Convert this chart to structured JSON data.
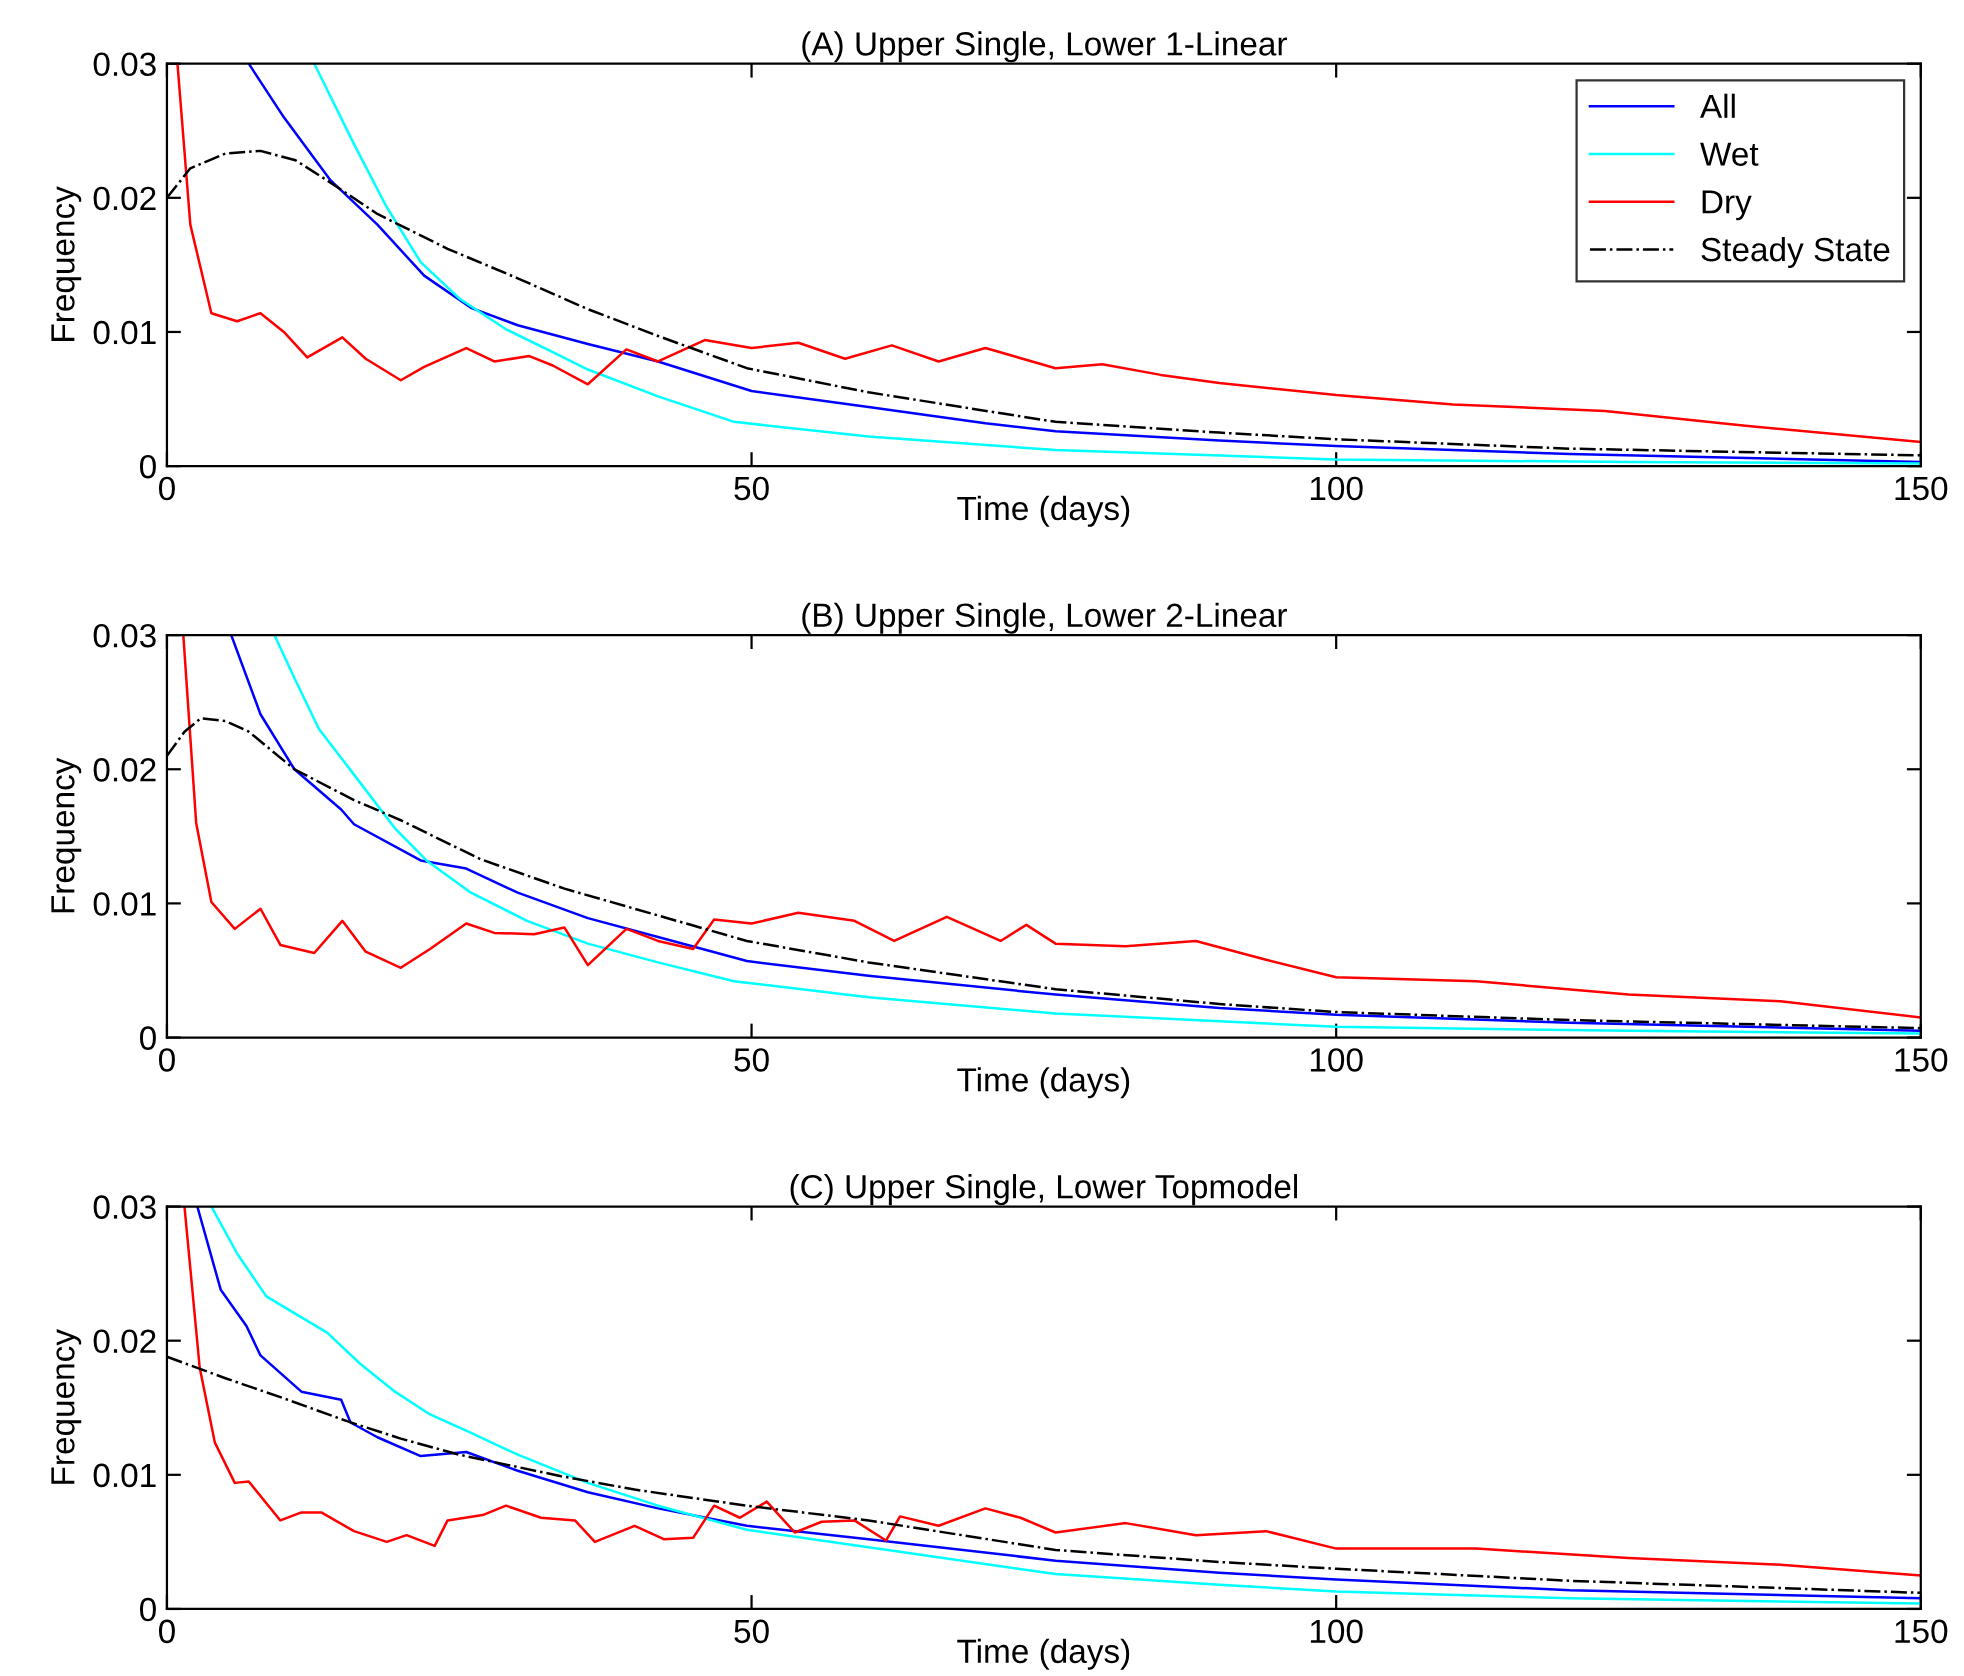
{
  "chart_data": [
    {
      "type": "line",
      "title": "(A) Upper Single, Lower 1-Linear",
      "xlabel": "Time (days)",
      "ylabel": "Frequency",
      "xlim": [
        0,
        150
      ],
      "ylim": [
        0,
        0.03
      ],
      "xticks": [
        0,
        50,
        100,
        150
      ],
      "yticks": [
        0,
        0.01,
        0.02,
        0.03
      ],
      "grid": false,
      "legend": "top right",
      "marker": "none",
      "series": [
        {
          "name": "All",
          "color": "#0000ff",
          "x": [
            7,
            10,
            14,
            18,
            22,
            26,
            30,
            36,
            42,
            50,
            60,
            70,
            76,
            90,
            100,
            120,
            150
          ],
          "values": [
            0.03,
            0.026,
            0.0213,
            0.018,
            0.0142,
            0.0118,
            0.0105,
            0.0091,
            0.0078,
            0.0056,
            0.0044,
            0.0032,
            0.0026,
            0.0019,
            0.0015,
            0.0009,
            0.0003
          ]
        },
        {
          "name": "Wet",
          "color": "#00ffff",
          "x": [
            12.6,
            16,
            18.8,
            21.7,
            25,
            29,
            33,
            36,
            42,
            48.5,
            60,
            76,
            100,
            125,
            150
          ],
          "values": [
            0.03,
            0.024,
            0.0193,
            0.0152,
            0.0125,
            0.0102,
            0.0085,
            0.0072,
            0.0052,
            0.0033,
            0.0022,
            0.0012,
            0.0005,
            0.0003,
            0.0002
          ]
        },
        {
          "name": "Dry",
          "color": "#ff0000",
          "x": [
            0.9,
            2,
            3.8,
            6,
            8,
            10,
            12,
            15,
            17,
            20,
            22,
            25.6,
            28,
            31,
            33,
            36,
            39.3,
            42,
            46,
            50,
            54,
            58,
            62,
            66,
            70,
            76,
            80,
            85,
            90,
            100,
            110,
            123,
            135,
            150
          ],
          "values": [
            0.03,
            0.018,
            0.0114,
            0.0108,
            0.0114,
            0.01,
            0.0081,
            0.0096,
            0.008,
            0.0064,
            0.0074,
            0.0088,
            0.0078,
            0.0082,
            0.0075,
            0.0061,
            0.0087,
            0.0078,
            0.0094,
            0.0088,
            0.0092,
            0.008,
            0.009,
            0.0078,
            0.0088,
            0.0073,
            0.0076,
            0.0068,
            0.0062,
            0.0053,
            0.0046,
            0.0041,
            0.003,
            0.0018
          ]
        },
        {
          "name": "Steady State",
          "color": "#000000",
          "line_style": "dashdot",
          "x": [
            0,
            2,
            5,
            8,
            11,
            13.7,
            18,
            24,
            30,
            36,
            42,
            49.6,
            60,
            76,
            90,
            100,
            120,
            150
          ],
          "values": [
            0.02,
            0.0222,
            0.0233,
            0.0235,
            0.0228,
            0.0213,
            0.0188,
            0.0162,
            0.014,
            0.0117,
            0.0097,
            0.0073,
            0.0055,
            0.0033,
            0.0025,
            0.002,
            0.0013,
            0.0008
          ]
        }
      ]
    },
    {
      "type": "line",
      "title": "(B) Upper Single, Lower 2-Linear",
      "xlabel": "Time (days)",
      "ylabel": "Frequency",
      "xlim": [
        0,
        150
      ],
      "ylim": [
        0,
        0.03
      ],
      "xticks": [
        0,
        50,
        100,
        150
      ],
      "yticks": [
        0,
        0.01,
        0.02,
        0.03
      ],
      "grid": false,
      "legend": false,
      "marker": "none",
      "series": [
        {
          "color": "#0000ff",
          "x": [
            5.5,
            8,
            10.9,
            14.9,
            16,
            21.7,
            25.6,
            30,
            36,
            42,
            49.6,
            60,
            76,
            90,
            100,
            120,
            150
          ],
          "values": [
            0.03,
            0.0241,
            0.02,
            0.017,
            0.0159,
            0.0132,
            0.0126,
            0.0108,
            0.0089,
            0.0075,
            0.0057,
            0.0046,
            0.0032,
            0.0022,
            0.0017,
            0.0011,
            0.0005
          ]
        },
        {
          "color": "#00ffff",
          "x": [
            9.2,
            10.9,
            13,
            16,
            19.5,
            22.2,
            26,
            30.8,
            36,
            42,
            48.5,
            60,
            76,
            100,
            125,
            150
          ],
          "values": [
            0.03,
            0.0268,
            0.023,
            0.0196,
            0.0156,
            0.0132,
            0.0108,
            0.0087,
            0.007,
            0.0056,
            0.0042,
            0.003,
            0.0018,
            0.0008,
            0.0005,
            0.0003
          ]
        },
        {
          "color": "#ff0000",
          "x": [
            1.4,
            2.5,
            3.8,
            5.8,
            8,
            9.7,
            12.6,
            15,
            17,
            20,
            22.5,
            25.6,
            28,
            31.4,
            34,
            36,
            39.3,
            42,
            45,
            46.8,
            50,
            54,
            58.8,
            62.2,
            66.7,
            71.3,
            73.5,
            76,
            82,
            88,
            94,
            100,
            112,
            125,
            138,
            150
          ],
          "values": [
            0.03,
            0.016,
            0.0101,
            0.0081,
            0.0096,
            0.0069,
            0.0063,
            0.0087,
            0.0064,
            0.0052,
            0.0066,
            0.0085,
            0.0078,
            0.0077,
            0.0082,
            0.0054,
            0.0081,
            0.0072,
            0.0066,
            0.0088,
            0.0085,
            0.0093,
            0.0087,
            0.0072,
            0.009,
            0.0072,
            0.0084,
            0.007,
            0.0068,
            0.0072,
            0.0058,
            0.0045,
            0.0042,
            0.0032,
            0.0027,
            0.0015
          ]
        },
        {
          "color": "#000000",
          "line_style": "dashdot",
          "x": [
            0,
            1.5,
            2.9,
            5,
            7,
            10.9,
            16,
            20,
            26.8,
            34,
            40,
            49.6,
            60,
            76,
            90,
            100,
            120,
            150
          ],
          "values": [
            0.021,
            0.0228,
            0.0238,
            0.0236,
            0.0228,
            0.02,
            0.0177,
            0.0162,
            0.0133,
            0.0111,
            0.0096,
            0.0072,
            0.0056,
            0.0036,
            0.0025,
            0.0019,
            0.0013,
            0.0007
          ]
        }
      ]
    },
    {
      "type": "line",
      "title": "(C) Upper Single, Lower Topmodel",
      "xlabel": "Time (days)",
      "ylabel": "Frequency",
      "xlim": [
        0,
        150
      ],
      "ylim": [
        0,
        0.03
      ],
      "xticks": [
        0,
        50,
        100,
        150
      ],
      "yticks": [
        0,
        0.01,
        0.02,
        0.03
      ],
      "grid": false,
      "legend": false,
      "marker": "none",
      "series": [
        {
          "color": "#0000ff",
          "x": [
            2.6,
            4.6,
            6.8,
            8,
            11.5,
            14.9,
            15.7,
            18,
            21.7,
            25.6,
            30,
            36,
            42,
            49.6,
            60,
            76,
            90,
            100,
            120,
            150
          ],
          "values": [
            0.03,
            0.0238,
            0.0211,
            0.0189,
            0.0162,
            0.0156,
            0.0139,
            0.0128,
            0.0114,
            0.0117,
            0.0103,
            0.0087,
            0.0075,
            0.0062,
            0.0052,
            0.0036,
            0.0027,
            0.0022,
            0.0014,
            0.0008
          ]
        },
        {
          "color": "#00ffff",
          "x": [
            3.8,
            6,
            8.5,
            11,
            13.7,
            16.5,
            19.5,
            22.5,
            25.6,
            30,
            36,
            42,
            49.6,
            60,
            76,
            90,
            100,
            120,
            150
          ],
          "values": [
            0.03,
            0.0265,
            0.0233,
            0.022,
            0.0206,
            0.0183,
            0.0162,
            0.0145,
            0.0133,
            0.0115,
            0.0094,
            0.0077,
            0.0059,
            0.0046,
            0.0026,
            0.0018,
            0.0013,
            0.0008,
            0.0004
          ]
        },
        {
          "color": "#ff0000",
          "x": [
            1.5,
            2.8,
            4.1,
            5.8,
            7,
            9.7,
            11.5,
            13.2,
            16,
            18.8,
            20.5,
            22.9,
            24,
            27,
            29,
            32,
            34.9,
            36.6,
            40,
            42.5,
            45,
            46.8,
            49,
            51.3,
            53.7,
            56,
            58.8,
            61.5,
            62.7,
            66,
            70,
            73,
            76,
            82,
            88,
            94,
            100,
            112,
            125,
            138,
            150
          ],
          "values": [
            0.03,
            0.018,
            0.0124,
            0.0094,
            0.0095,
            0.0066,
            0.0072,
            0.0072,
            0.0058,
            0.005,
            0.0055,
            0.0047,
            0.0066,
            0.007,
            0.0077,
            0.0068,
            0.0066,
            0.005,
            0.0062,
            0.0052,
            0.0053,
            0.0077,
            0.0068,
            0.008,
            0.0057,
            0.0065,
            0.0066,
            0.0051,
            0.0069,
            0.0062,
            0.0075,
            0.0068,
            0.0057,
            0.0064,
            0.0055,
            0.0058,
            0.0045,
            0.0045,
            0.0038,
            0.0033,
            0.0025
          ]
        },
        {
          "color": "#000000",
          "line_style": "dashdot",
          "x": [
            0,
            5,
            10,
            15.4,
            20,
            25,
            33.7,
            40,
            49.6,
            60,
            76,
            90,
            100,
            120,
            150
          ],
          "values": [
            0.0188,
            0.0172,
            0.0157,
            0.014,
            0.0127,
            0.0115,
            0.0099,
            0.0089,
            0.0077,
            0.0066,
            0.0044,
            0.0035,
            0.003,
            0.0021,
            0.0012
          ]
        }
      ]
    }
  ]
}
